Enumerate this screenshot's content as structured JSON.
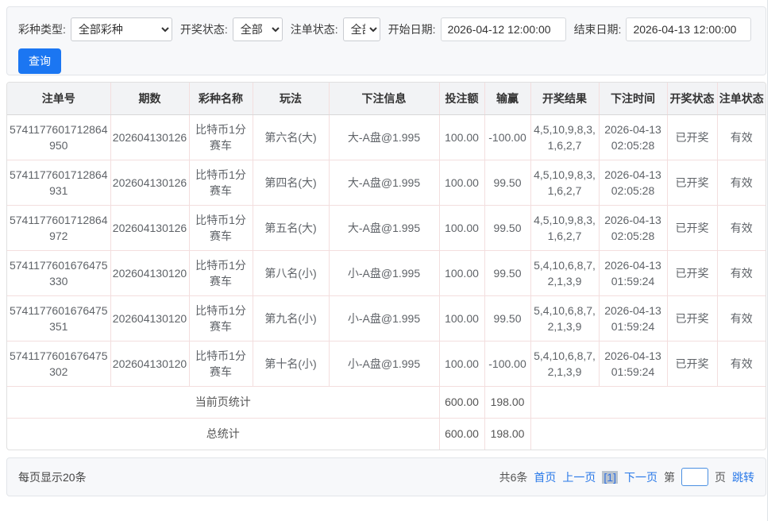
{
  "colors": {
    "accent_blue": "#1b76f2",
    "link_blue": "#2878e8",
    "table_border_pink": "#f3dede"
  },
  "filters": {
    "lottery_type": {
      "label": "彩种类型:",
      "value": "全部彩种"
    },
    "draw_status": {
      "label": "开奖状态:",
      "value": "全部"
    },
    "bet_status": {
      "label": "注单状态:",
      "value": "全部"
    },
    "start_date": {
      "label": "开始日期:",
      "value": "2026-04-12 12:00:00"
    },
    "end_date": {
      "label": "结束日期:",
      "value": "2026-04-13 12:00:00"
    },
    "search_label": "查询"
  },
  "table": {
    "headers": [
      "注单号",
      "期数",
      "彩种名称",
      "玩法",
      "下注信息",
      "投注额",
      "输赢",
      "开奖结果",
      "下注时间",
      "开奖状态",
      "注单状态"
    ],
    "rows": [
      [
        "5741177601712864950",
        "202604130126",
        "比特币1分赛车",
        "第六名(大)",
        "大-A盘@1.995",
        "100.00",
        "-100.00",
        "4,5,10,9,8,3,1,6,2,7",
        "2026-04-13 02:05:28",
        "已开奖",
        "有效"
      ],
      [
        "5741177601712864931",
        "202604130126",
        "比特币1分赛车",
        "第四名(大)",
        "大-A盘@1.995",
        "100.00",
        "99.50",
        "4,5,10,9,8,3,1,6,2,7",
        "2026-04-13 02:05:28",
        "已开奖",
        "有效"
      ],
      [
        "5741177601712864972",
        "202604130126",
        "比特币1分赛车",
        "第五名(大)",
        "大-A盘@1.995",
        "100.00",
        "99.50",
        "4,5,10,9,8,3,1,6,2,7",
        "2026-04-13 02:05:28",
        "已开奖",
        "有效"
      ],
      [
        "5741177601676475330",
        "202604130120",
        "比特币1分赛车",
        "第八名(小)",
        "小-A盘@1.995",
        "100.00",
        "99.50",
        "5,4,10,6,8,7,2,1,3,9",
        "2026-04-13 01:59:24",
        "已开奖",
        "有效"
      ],
      [
        "5741177601676475351",
        "202604130120",
        "比特币1分赛车",
        "第九名(小)",
        "小-A盘@1.995",
        "100.00",
        "99.50",
        "5,4,10,6,8,7,2,1,3,9",
        "2026-04-13 01:59:24",
        "已开奖",
        "有效"
      ],
      [
        "5741177601676475302",
        "202604130120",
        "比特币1分赛车",
        "第十名(小)",
        "小-A盘@1.995",
        "100.00",
        "-100.00",
        "5,4,10,6,8,7,2,1,3,9",
        "2026-04-13 01:59:24",
        "已开奖",
        "有效"
      ]
    ],
    "summary": [
      {
        "label": "当前页统计",
        "bet_total": "600.00",
        "win_total": "198.00"
      },
      {
        "label": "总统计",
        "bet_total": "600.00",
        "win_total": "198.00"
      }
    ]
  },
  "pagination": {
    "page_size_text": "每页显示20条",
    "total_text": "共6条",
    "first_label": "首页",
    "prev_label": "上一页",
    "current_page": "[1]",
    "next_label": "下一页",
    "jump_prefix": "第",
    "jump_suffix": "页",
    "jump_label": "跳转",
    "page_input_value": ""
  }
}
